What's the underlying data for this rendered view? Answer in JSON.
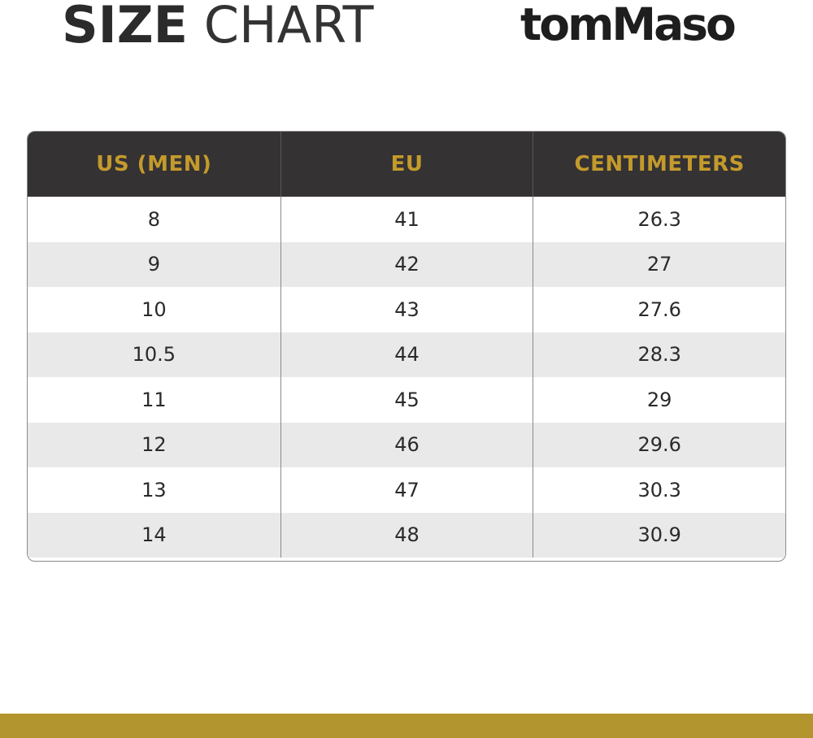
{
  "header": {
    "title_bold": "SIZE",
    "title_light": "CHART",
    "brand": "tomMaso"
  },
  "table": {
    "columns": [
      "US (MEN)",
      "EU",
      "CENTIMETERS"
    ],
    "rows": [
      [
        "8",
        "41",
        "26.3"
      ],
      [
        "9",
        "42",
        "27"
      ],
      [
        "10",
        "43",
        "27.6"
      ],
      [
        "10.5",
        "44",
        "28.3"
      ],
      [
        "11",
        "45",
        "29"
      ],
      [
        "12",
        "46",
        "29.6"
      ],
      [
        "13",
        "47",
        "30.3"
      ],
      [
        "14",
        "48",
        "30.9"
      ]
    ]
  },
  "colors": {
    "header_bg": "#343233",
    "header_text": "#c49a2c",
    "accent_bar": "#b39530",
    "alt_row": "#e9e9e9"
  }
}
